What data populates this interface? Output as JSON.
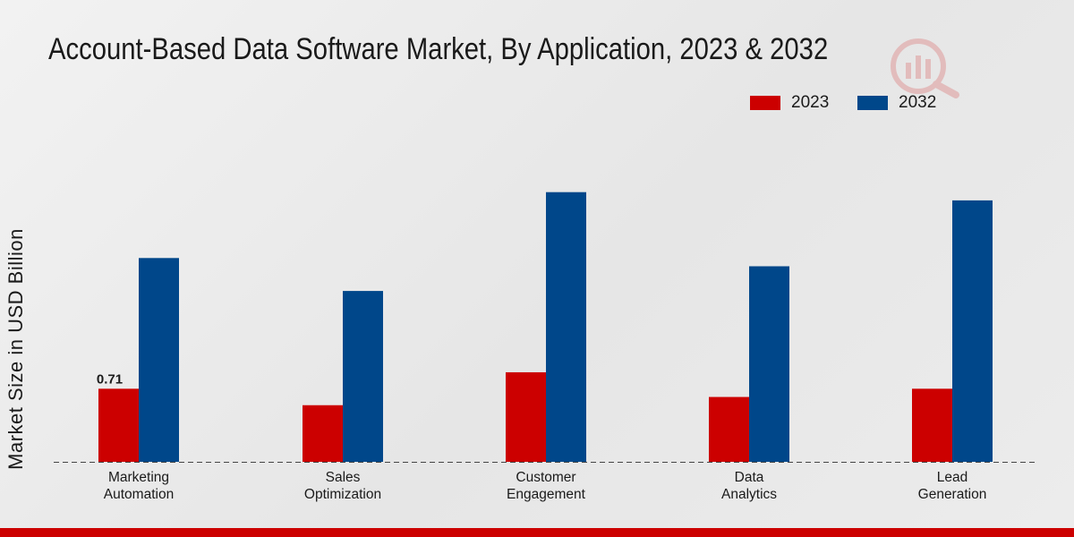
{
  "chart_data": {
    "type": "bar",
    "title": "Account-Based Data Software Market, By Application, 2023 & 2032",
    "xlabel": "",
    "ylabel": "Market Size in USD Billion",
    "categories": [
      [
        "Marketing",
        "Automation"
      ],
      [
        "Sales",
        "Optimization"
      ],
      [
        "Customer",
        "Engagement"
      ],
      [
        "Data",
        "Analytics"
      ],
      [
        "Lead",
        "Generation"
      ]
    ],
    "series": [
      {
        "name": "2023",
        "color": "#cc0000",
        "values": [
          0.71,
          0.55,
          0.87,
          0.63,
          0.71
        ]
      },
      {
        "name": "2032",
        "color": "#00478a",
        "values": [
          1.98,
          1.66,
          2.62,
          1.9,
          2.54
        ]
      }
    ],
    "data_labels": [
      {
        "series": 0,
        "index": 0,
        "text": "0.71"
      }
    ],
    "ylim": [
      0,
      4.0
    ],
    "legend_position": "top-right",
    "grid": false
  }
}
